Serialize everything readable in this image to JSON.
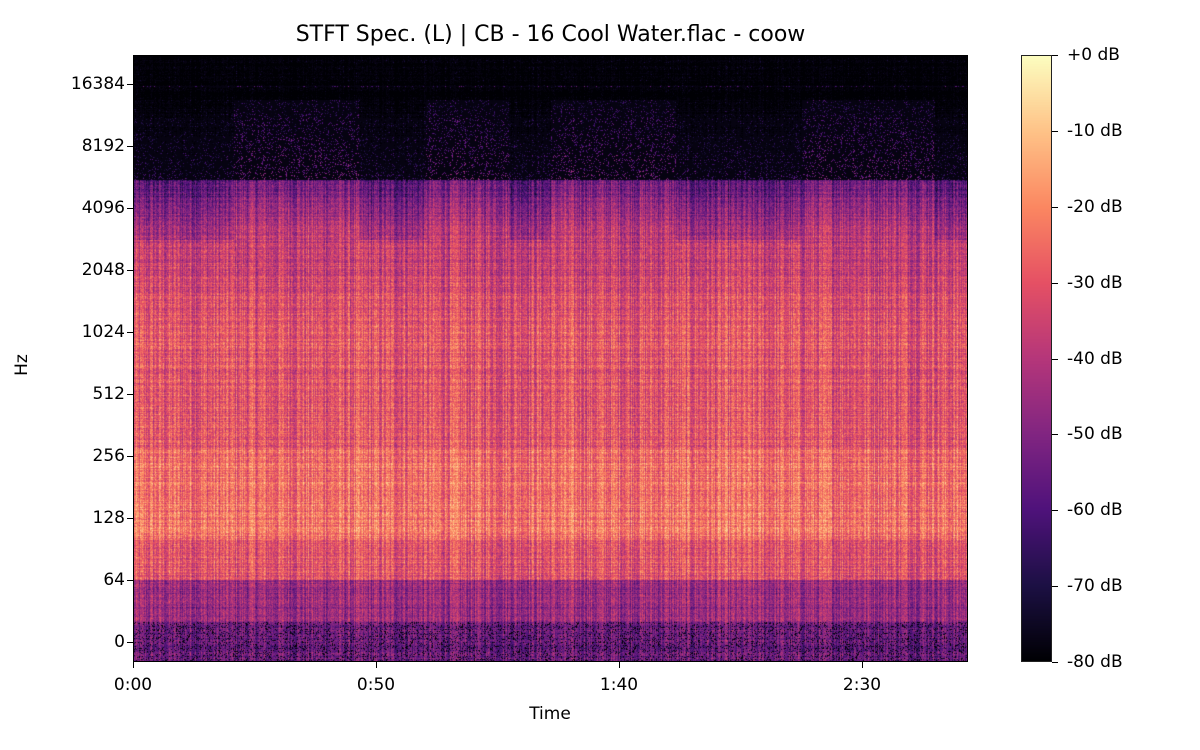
{
  "chart_data": {
    "type": "heatmap",
    "title": "STFT Spec. (L) | CB - 16 Cool Water.flac - coow",
    "xlabel": "Time",
    "ylabel": "Hz",
    "x_ticks": [
      "0:00",
      "0:50",
      "1:40",
      "2:30"
    ],
    "y_ticks": [
      "0",
      "64",
      "128",
      "256",
      "512",
      "1024",
      "2048",
      "4096",
      "8192",
      "16384"
    ],
    "y_scale": "log",
    "colormap": "magma",
    "colorbar": {
      "ticks": [
        "+0 dB",
        "-10 dB",
        "-20 dB",
        "-30 dB",
        "-40 dB",
        "-50 dB",
        "-60 dB",
        "-70 dB",
        "-80 dB"
      ],
      "range_db": [
        -80,
        0
      ]
    },
    "colors": {
      "low": "#000004",
      "high": "#fcfdbf"
    }
  }
}
